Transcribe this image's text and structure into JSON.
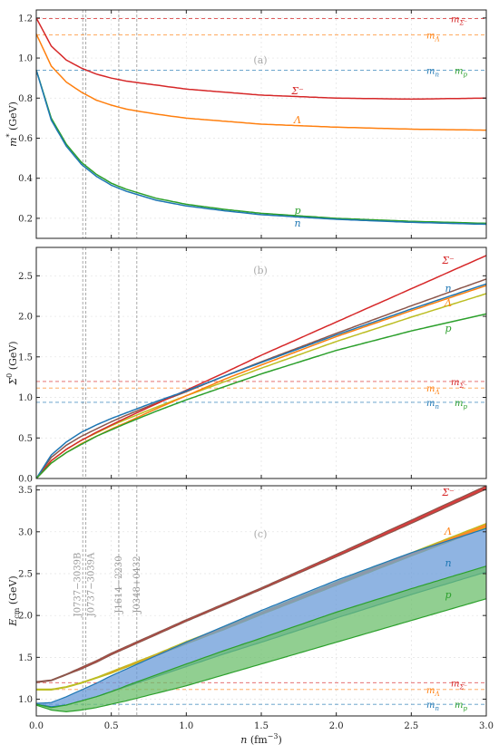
{
  "colors": {
    "Sigma": "#d62728",
    "Lambda": "#ff7f0e",
    "n": "#1f77b4",
    "p": "#2ca02c",
    "Sigma_band": "#8c564b",
    "Lambda_band": "#bcbd22",
    "n_band_fill": "#6a9bd8",
    "p_band_fill": "#6cbf6c",
    "vline": "#aaaaaa"
  },
  "chart_data": [
    {
      "type": "line",
      "panel_label": "(a)",
      "ylabel": "m* (GeV)",
      "ylabel_main": "m",
      "ylabel_sup": "*",
      "ylabel_unit": " (GeV)",
      "xlim": [
        0,
        3.0
      ],
      "ylim": [
        0.1,
        1.24
      ],
      "yticks": [
        0.2,
        0.4,
        0.6,
        0.8,
        1.0,
        1.2
      ],
      "ytick_labels": [
        "0.2",
        "0.4",
        "0.6",
        "0.8",
        "1.0",
        "1.2"
      ],
      "x": [
        0,
        0.1,
        0.2,
        0.3,
        0.4,
        0.5,
        0.6,
        0.8,
        1.0,
        1.25,
        1.5,
        2.0,
        2.5,
        3.0
      ],
      "series": [
        {
          "key": "Sigma",
          "name": "Σ⁻",
          "values": [
            1.2,
            1.06,
            0.99,
            0.95,
            0.92,
            0.9,
            0.885,
            0.865,
            0.845,
            0.83,
            0.815,
            0.8,
            0.795,
            0.8
          ]
        },
        {
          "key": "Lambda",
          "name": "Λ",
          "values": [
            1.12,
            0.96,
            0.88,
            0.83,
            0.79,
            0.765,
            0.745,
            0.72,
            0.7,
            0.685,
            0.67,
            0.655,
            0.645,
            0.64
          ]
        },
        {
          "key": "p",
          "name": "p",
          "values": [
            0.94,
            0.7,
            0.57,
            0.48,
            0.42,
            0.375,
            0.345,
            0.3,
            0.27,
            0.245,
            0.225,
            0.2,
            0.185,
            0.175
          ]
        },
        {
          "key": "n",
          "name": "n",
          "values": [
            0.94,
            0.69,
            0.56,
            0.47,
            0.41,
            0.365,
            0.335,
            0.29,
            0.262,
            0.238,
            0.218,
            0.195,
            0.18,
            0.17
          ]
        }
      ],
      "hlines": [
        {
          "key": "Sigma",
          "y": 1.197,
          "label_main": "m",
          "label_sub": "Σ⁻"
        },
        {
          "key": "Lambda",
          "y": 1.116,
          "label_main": "m",
          "label_sub": "Λ"
        },
        {
          "key": "n",
          "y": 0.939,
          "label_main": "m",
          "label_sub": "n",
          "label2_main": "m",
          "label2_sub": "p",
          "label2_key": "p"
        }
      ]
    },
    {
      "type": "line",
      "panel_label": "(b)",
      "ylabel": "Σ⁰ (GeV)",
      "ylabel_main": "Σ",
      "ylabel_sup": "0",
      "ylabel_unit": " (GeV)",
      "xlim": [
        0,
        3.0
      ],
      "ylim": [
        0,
        2.85
      ],
      "yticks": [
        0,
        0.5,
        1.0,
        1.5,
        2.0,
        2.5
      ],
      "ytick_labels": [
        "0.0",
        "0.5",
        "1.0",
        "1.5",
        "2.0",
        "2.5"
      ],
      "x": [
        0,
        0.1,
        0.2,
        0.3,
        0.4,
        0.5,
        0.6,
        0.8,
        1.0,
        1.25,
        1.5,
        2.0,
        2.5,
        3.0
      ],
      "series": [
        {
          "key": "Sigma",
          "name": "Σ⁻",
          "values": [
            0,
            0.22,
            0.36,
            0.47,
            0.57,
            0.66,
            0.75,
            0.92,
            1.09,
            1.3,
            1.52,
            1.93,
            2.34,
            2.75
          ]
        },
        {
          "key": "n",
          "name": "n",
          "values": [
            0,
            0.29,
            0.45,
            0.57,
            0.66,
            0.74,
            0.81,
            0.95,
            1.08,
            1.26,
            1.43,
            1.77,
            2.09,
            2.4
          ]
        },
        {
          "key": "Lambda",
          "name": "Λ",
          "values": [
            0,
            0.19,
            0.32,
            0.43,
            0.52,
            0.61,
            0.69,
            0.86,
            1.02,
            1.22,
            1.4,
            1.75,
            2.07,
            2.38
          ]
        },
        {
          "key": "p",
          "name": "p",
          "values": [
            0,
            0.19,
            0.32,
            0.42,
            0.52,
            0.6,
            0.68,
            0.83,
            0.97,
            1.13,
            1.29,
            1.58,
            1.82,
            2.03
          ]
        }
      ],
      "extra_series": [
        {
          "key": "Sigma_band",
          "values": [
            0,
            0.26,
            0.41,
            0.52,
            0.61,
            0.7,
            0.78,
            0.93,
            1.07,
            1.26,
            1.44,
            1.79,
            2.13,
            2.46
          ]
        },
        {
          "key": "Lambda_band",
          "values": [
            0,
            0.22,
            0.36,
            0.47,
            0.56,
            0.65,
            0.73,
            0.88,
            1.02,
            1.19,
            1.36,
            1.69,
            1.99,
            2.28
          ]
        }
      ],
      "hlines": [
        {
          "key": "Sigma",
          "y": 1.197,
          "label_main": "m",
          "label_sub": "Σ⁻"
        },
        {
          "key": "Lambda",
          "y": 1.116,
          "label_main": "m",
          "label_sub": "Λ"
        },
        {
          "key": "n",
          "y": 0.939,
          "label_main": "m",
          "label_sub": "n",
          "label2_main": "m",
          "label2_sub": "p",
          "label2_key": "p"
        }
      ]
    },
    {
      "type": "area",
      "panel_label": "(c)",
      "ylabel": "Ecm (GeV)",
      "ylabel_main": "E",
      "ylabel_sub": "cm",
      "ylabel_unit": " (GeV)",
      "xlabel": "n (fm⁻³)",
      "xlabel_main": "n",
      "xlabel_unit": " (fm",
      "xlabel_sup": "−3",
      "xlabel_close": ")",
      "xlim": [
        0,
        3.0
      ],
      "ylim": [
        0.8,
        3.55
      ],
      "yticks": [
        1.0,
        1.5,
        2.0,
        2.5,
        3.0,
        3.5
      ],
      "ytick_labels": [
        "1.0",
        "1.5",
        "2.0",
        "2.5",
        "3.0",
        "3.5"
      ],
      "xticks": [
        0,
        0.5,
        1.0,
        1.5,
        2.0,
        2.5,
        3.0
      ],
      "xtick_labels": [
        "0.0",
        "0.5",
        "1.0",
        "1.5",
        "2.0",
        "2.5",
        "3.0"
      ],
      "x": [
        0,
        0.1,
        0.2,
        0.3,
        0.4,
        0.5,
        0.6,
        0.8,
        1.0,
        1.25,
        1.5,
        2.0,
        2.5,
        3.0
      ],
      "bands": [
        {
          "key": "Sigma",
          "fill": "Sigma",
          "upper": [
            1.21,
            1.23,
            1.3,
            1.38,
            1.46,
            1.55,
            1.63,
            1.79,
            1.95,
            2.14,
            2.33,
            2.73,
            3.14,
            3.55
          ],
          "lower": [
            1.2,
            1.22,
            1.29,
            1.36,
            1.44,
            1.53,
            1.61,
            1.77,
            1.93,
            2.12,
            2.31,
            2.7,
            3.1,
            3.51
          ],
          "edge": "Sigma_band"
        },
        {
          "key": "Lambda",
          "fill": "Lambda",
          "upper": [
            1.12,
            1.12,
            1.15,
            1.2,
            1.26,
            1.33,
            1.4,
            1.54,
            1.69,
            1.86,
            2.04,
            2.4,
            2.75,
            3.1
          ],
          "lower": [
            1.11,
            1.11,
            1.14,
            1.19,
            1.25,
            1.31,
            1.38,
            1.52,
            1.66,
            1.83,
            2.01,
            2.36,
            2.71,
            3.05
          ],
          "edge": "Lambda_band"
        },
        {
          "key": "n",
          "fill": "n_band_fill",
          "upper": [
            0.95,
            0.96,
            1.03,
            1.11,
            1.19,
            1.28,
            1.36,
            1.52,
            1.68,
            1.87,
            2.06,
            2.42,
            2.75,
            3.04
          ],
          "lower": [
            0.94,
            0.91,
            0.93,
            0.98,
            1.03,
            1.09,
            1.15,
            1.27,
            1.39,
            1.54,
            1.68,
            1.97,
            2.25,
            2.52
          ],
          "edge": "n"
        },
        {
          "key": "p",
          "fill": "p_band_fill",
          "upper": [
            0.94,
            0.9,
            0.93,
            0.98,
            1.03,
            1.09,
            1.16,
            1.29,
            1.42,
            1.58,
            1.73,
            2.04,
            2.32,
            2.59
          ],
          "lower": [
            0.93,
            0.87,
            0.85,
            0.87,
            0.9,
            0.94,
            0.98,
            1.07,
            1.16,
            1.29,
            1.42,
            1.68,
            1.94,
            2.2
          ],
          "edge": "p"
        }
      ],
      "band_labels": [
        {
          "key": "Sigma",
          "text": "Σ⁻"
        },
        {
          "key": "Lambda",
          "text": "Λ"
        },
        {
          "key": "n",
          "text": "n"
        },
        {
          "key": "p",
          "text": "p"
        }
      ],
      "hlines": [
        {
          "key": "Sigma",
          "y": 1.197,
          "label_main": "m",
          "label_sub": "Σ⁻"
        },
        {
          "key": "Lambda",
          "y": 1.116,
          "label_main": "m",
          "label_sub": "Λ"
        },
        {
          "key": "n",
          "y": 0.939,
          "label_main": "m",
          "label_sub": "n",
          "label2_main": "m",
          "label2_sub": "p",
          "label2_key": "p"
        }
      ]
    }
  ],
  "vlines": [
    {
      "x": 0.31,
      "label": "J0737−3039B"
    },
    {
      "x": 0.33,
      "label": "J0737−3039A"
    },
    {
      "x": 0.55,
      "label": "J1614−2230"
    },
    {
      "x": 0.67,
      "label": "J0348+0432"
    }
  ]
}
